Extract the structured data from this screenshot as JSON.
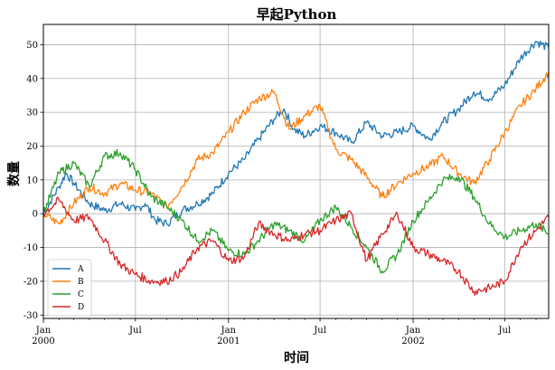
{
  "chart_data": {
    "type": "line",
    "title": "早起Python",
    "xlabel": "时间",
    "ylabel": "数量",
    "x_range": [
      "2000-01-01",
      "2002-09-26"
    ],
    "ylim": [
      -31,
      56
    ],
    "yticks": [
      -30,
      -20,
      -10,
      0,
      10,
      20,
      30,
      40,
      50
    ],
    "xticks": [
      {
        "date": "2000-01-01",
        "label": "Jan",
        "sub": "2000",
        "major": true
      },
      {
        "date": "2000-07-01",
        "label": "Jul",
        "sub": "",
        "major": false
      },
      {
        "date": "2001-01-01",
        "label": "Jan",
        "sub": "2001",
        "major": true
      },
      {
        "date": "2001-07-01",
        "label": "Jul",
        "sub": "",
        "major": false
      },
      {
        "date": "2002-01-01",
        "label": "Jan",
        "sub": "2002",
        "major": true
      },
      {
        "date": "2002-07-01",
        "label": "Jul",
        "sub": "",
        "major": false
      }
    ],
    "grid": true,
    "legend_position": "lower-left",
    "series": [
      {
        "name": "A",
        "color": "#1f77b4",
        "points": [
          [
            "2000-01-01",
            0
          ],
          [
            "2000-02-01",
            8
          ],
          [
            "2000-02-15",
            12
          ],
          [
            "2000-03-01",
            9
          ],
          [
            "2000-04-01",
            3
          ],
          [
            "2000-05-01",
            1
          ],
          [
            "2000-06-01",
            3
          ],
          [
            "2000-07-01",
            1
          ],
          [
            "2000-07-20",
            3
          ],
          [
            "2000-08-10",
            -2
          ],
          [
            "2000-09-01",
            -3
          ],
          [
            "2000-10-01",
            1
          ],
          [
            "2000-11-01",
            3
          ],
          [
            "2000-12-01",
            6
          ],
          [
            "2001-01-01",
            12
          ],
          [
            "2001-02-01",
            16
          ],
          [
            "2001-03-01",
            22
          ],
          [
            "2001-04-01",
            28
          ],
          [
            "2001-04-20",
            31
          ],
          [
            "2001-05-10",
            25
          ],
          [
            "2001-06-01",
            23
          ],
          [
            "2001-07-01",
            26
          ],
          [
            "2001-08-01",
            24
          ],
          [
            "2001-09-01",
            21
          ],
          [
            "2001-10-01",
            27
          ],
          [
            "2001-11-01",
            23
          ],
          [
            "2001-12-01",
            24
          ],
          [
            "2002-01-01",
            26
          ],
          [
            "2002-02-01",
            22
          ],
          [
            "2002-03-01",
            27
          ],
          [
            "2002-04-01",
            31
          ],
          [
            "2002-05-01",
            36
          ],
          [
            "2002-06-01",
            34
          ],
          [
            "2002-07-01",
            38
          ],
          [
            "2002-08-01",
            46
          ],
          [
            "2002-09-01",
            51
          ],
          [
            "2002-09-26",
            49
          ]
        ]
      },
      {
        "name": "B",
        "color": "#ff7f0e",
        "points": [
          [
            "2000-01-01",
            0
          ],
          [
            "2000-02-01",
            -3
          ],
          [
            "2000-03-01",
            3
          ],
          [
            "2000-04-01",
            8
          ],
          [
            "2000-05-01",
            6
          ],
          [
            "2000-06-01",
            9
          ],
          [
            "2000-07-01",
            7
          ],
          [
            "2000-08-01",
            6
          ],
          [
            "2000-09-01",
            2
          ],
          [
            "2000-10-01",
            8
          ],
          [
            "2000-11-01",
            16
          ],
          [
            "2000-12-01",
            18
          ],
          [
            "2001-01-01",
            24
          ],
          [
            "2001-02-01",
            30
          ],
          [
            "2001-03-01",
            34
          ],
          [
            "2001-04-01",
            36
          ],
          [
            "2001-05-01",
            25
          ],
          [
            "2001-06-01",
            29
          ],
          [
            "2001-07-01",
            32
          ],
          [
            "2001-08-01",
            19
          ],
          [
            "2001-09-01",
            16
          ],
          [
            "2001-10-01",
            11
          ],
          [
            "2001-11-01",
            5
          ],
          [
            "2001-12-01",
            9
          ],
          [
            "2002-01-01",
            12
          ],
          [
            "2002-02-01",
            14
          ],
          [
            "2002-03-01",
            17
          ],
          [
            "2002-04-01",
            12
          ],
          [
            "2002-05-01",
            9
          ],
          [
            "2002-06-01",
            16
          ],
          [
            "2002-07-01",
            24
          ],
          [
            "2002-08-01",
            32
          ],
          [
            "2002-09-01",
            37
          ],
          [
            "2002-09-26",
            42
          ]
        ]
      },
      {
        "name": "C",
        "color": "#2ca02c",
        "points": [
          [
            "2000-01-01",
            0
          ],
          [
            "2000-02-01",
            12
          ],
          [
            "2000-03-01",
            15
          ],
          [
            "2000-04-01",
            8
          ],
          [
            "2000-05-01",
            17
          ],
          [
            "2000-06-01",
            18
          ],
          [
            "2000-07-01",
            13
          ],
          [
            "2000-08-01",
            5
          ],
          [
            "2000-09-01",
            2
          ],
          [
            "2000-10-01",
            -2
          ],
          [
            "2000-11-01",
            -8
          ],
          [
            "2000-12-01",
            -5
          ],
          [
            "2001-01-01",
            -11
          ],
          [
            "2001-02-01",
            -12
          ],
          [
            "2001-03-01",
            -8
          ],
          [
            "2001-04-01",
            -3
          ],
          [
            "2001-05-01",
            -5
          ],
          [
            "2001-06-01",
            -8
          ],
          [
            "2001-07-01",
            -2
          ],
          [
            "2001-08-01",
            2
          ],
          [
            "2001-09-01",
            -4
          ],
          [
            "2001-10-01",
            -10
          ],
          [
            "2001-11-01",
            -17
          ],
          [
            "2001-12-01",
            -12
          ],
          [
            "2002-01-01",
            -2
          ],
          [
            "2002-02-01",
            4
          ],
          [
            "2002-03-01",
            10
          ],
          [
            "2002-04-01",
            11
          ],
          [
            "2002-05-01",
            5
          ],
          [
            "2002-06-01",
            -3
          ],
          [
            "2002-07-01",
            -7
          ],
          [
            "2002-08-01",
            -5
          ],
          [
            "2002-09-01",
            -3
          ],
          [
            "2002-09-26",
            -6
          ]
        ]
      },
      {
        "name": "D",
        "color": "#d62728",
        "points": [
          [
            "2000-01-01",
            0
          ],
          [
            "2000-02-01",
            4
          ],
          [
            "2000-03-01",
            -2
          ],
          [
            "2000-04-01",
            -1
          ],
          [
            "2000-05-01",
            -8
          ],
          [
            "2000-06-01",
            -15
          ],
          [
            "2000-07-01",
            -18
          ],
          [
            "2000-08-01",
            -20
          ],
          [
            "2000-09-01",
            -20
          ],
          [
            "2000-10-01",
            -17
          ],
          [
            "2000-11-01",
            -10
          ],
          [
            "2000-12-01",
            -8
          ],
          [
            "2001-01-01",
            -14
          ],
          [
            "2001-02-01",
            -13
          ],
          [
            "2001-03-01",
            -3
          ],
          [
            "2001-04-01",
            -6
          ],
          [
            "2001-05-01",
            -8
          ],
          [
            "2001-06-01",
            -6
          ],
          [
            "2001-07-01",
            -5
          ],
          [
            "2001-08-01",
            -2
          ],
          [
            "2001-09-01",
            0
          ],
          [
            "2001-10-01",
            -14
          ],
          [
            "2001-11-01",
            -6
          ],
          [
            "2001-12-01",
            0
          ],
          [
            "2002-01-01",
            -10
          ],
          [
            "2002-02-01",
            -12
          ],
          [
            "2002-03-01",
            -14
          ],
          [
            "2002-04-01",
            -17
          ],
          [
            "2002-05-01",
            -23
          ],
          [
            "2002-06-01",
            -22
          ],
          [
            "2002-07-01",
            -20
          ],
          [
            "2002-08-01",
            -10
          ],
          [
            "2002-09-01",
            -5
          ],
          [
            "2002-09-26",
            -1
          ]
        ]
      }
    ]
  }
}
